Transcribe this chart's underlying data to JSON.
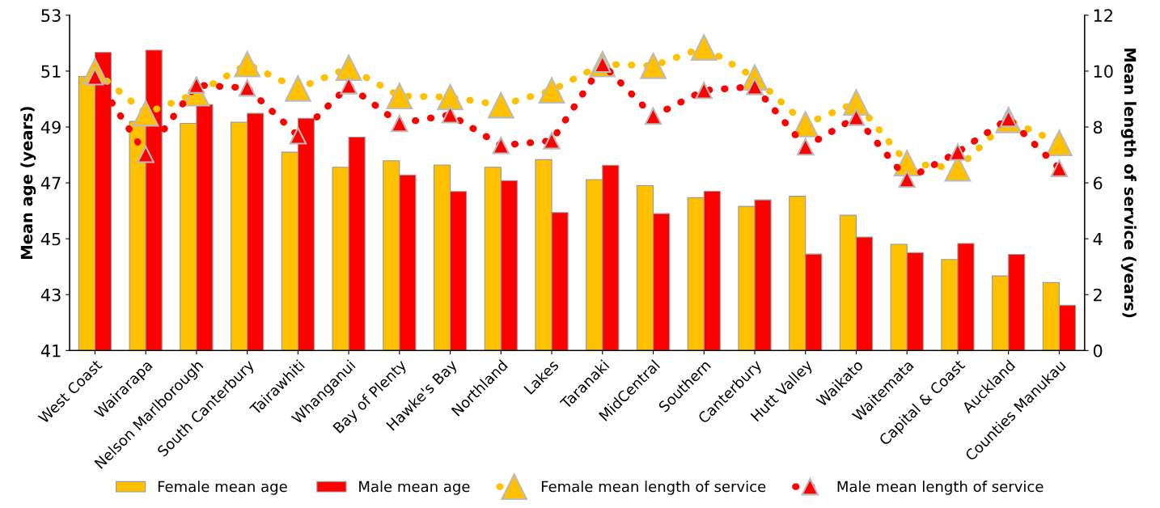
{
  "chart_data": {
    "type": "bar",
    "ylabel": "Mean age (years)",
    "y2label": "Mean length of service (years)",
    "categories": [
      "West Coast",
      "Wairarapa",
      "Nelson Marlborough",
      "South Canterbury",
      "Tairawhiti",
      "Whanganui",
      "Bay of Plenty",
      "Hawke's Bay",
      "Northland",
      "Lakes",
      "Taranaki",
      "MidCentral",
      "Southern",
      "Canterbury",
      "Hutt Valley",
      "Waikato",
      "Waitemata",
      "Capital & Coast",
      "Auckland",
      "Counties Manukau"
    ],
    "series": [
      {
        "name": "Female mean age",
        "color": "#ffc000",
        "values": [
          50.81,
          49.2,
          49.13,
          49.17,
          48.1,
          47.56,
          47.79,
          47.64,
          47.56,
          47.83,
          47.12,
          46.9,
          46.47,
          46.16,
          46.52,
          45.84,
          44.8,
          44.26,
          43.67,
          43.43
        ]
      },
      {
        "name": "Male mean age",
        "color": "#ff0000",
        "values": [
          51.67,
          51.75,
          49.8,
          49.49,
          49.31,
          48.64,
          47.28,
          46.69,
          47.08,
          45.94,
          47.63,
          45.9,
          46.7,
          46.39,
          44.45,
          45.06,
          44.5,
          44.83,
          44.44,
          42.62
        ]
      },
      {
        "name": "Female mean length of service",
        "type": "line",
        "axis": "y2",
        "color": "#ffc000",
        "marker": "triangle",
        "line_style": "dotted",
        "values": [
          10.0,
          8.49,
          9.21,
          10.25,
          9.38,
          10.12,
          9.11,
          9.07,
          8.78,
          9.31,
          10.25,
          10.19,
          10.85,
          9.77,
          8.1,
          8.88,
          6.71,
          6.52,
          8.25,
          7.43
        ]
      },
      {
        "name": "Male mean length of service",
        "type": "line",
        "axis": "y2",
        "color": "#ff0000",
        "marker": "triangle",
        "line_style": "dotted",
        "values": [
          9.8,
          7.02,
          9.5,
          9.4,
          7.69,
          9.48,
          8.13,
          8.44,
          7.34,
          7.51,
          10.25,
          8.39,
          9.31,
          9.45,
          7.29,
          8.35,
          6.13,
          7.1,
          8.3,
          6.52
        ]
      }
    ],
    "ylim": [
      41,
      53
    ],
    "yticks": [
      41,
      43,
      45,
      47,
      49,
      51,
      53
    ],
    "y2lim": [
      0,
      12
    ],
    "y2ticks": [
      0,
      2,
      4,
      6,
      8,
      10,
      12
    ],
    "grid": false,
    "legend": "bottom"
  }
}
